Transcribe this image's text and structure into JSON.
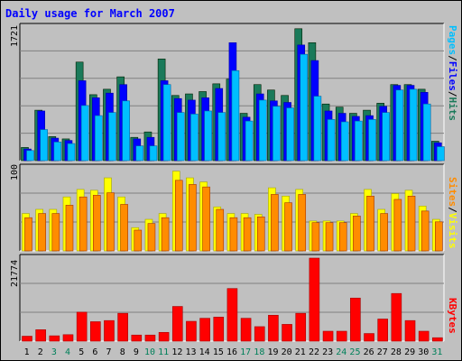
{
  "chart_data": [
    {
      "type": "bar",
      "panel": "top",
      "title": "Daily usage for March 2007",
      "scale_label": "1721",
      "categories": [
        "1",
        "2",
        "3",
        "4",
        "5",
        "6",
        "7",
        "8",
        "9",
        "10",
        "11",
        "12",
        "13",
        "14",
        "15",
        "16",
        "17",
        "18",
        "19",
        "20",
        "21",
        "22",
        "23",
        "24",
        "25",
        "26",
        "27",
        "28",
        "29",
        "30",
        "31"
      ],
      "weekend_days": [
        "3",
        "4",
        "10",
        "11",
        "17",
        "18",
        "24",
        "25",
        "31"
      ],
      "ylim": [
        0,
        1721
      ],
      "legend": [
        "Pages",
        "Files",
        "Hits"
      ],
      "series": [
        {
          "name": "Hits",
          "color": "#1a7a5a",
          "values": [
            170,
            650,
            310,
            280,
            1270,
            850,
            920,
            1080,
            300,
            370,
            1310,
            840,
            860,
            890,
            990,
            1050,
            610,
            980,
            910,
            840,
            1700,
            1520,
            730,
            690,
            610,
            650,
            740,
            980,
            980,
            920,
            250
          ]
        },
        {
          "name": "Files",
          "color": "#0000ff",
          "values": [
            150,
            640,
            290,
            260,
            1030,
            810,
            870,
            980,
            280,
            300,
            1030,
            800,
            780,
            810,
            930,
            1520,
            560,
            860,
            770,
            750,
            1490,
            1290,
            640,
            610,
            570,
            580,
            700,
            970,
            970,
            880,
            230
          ]
        },
        {
          "name": "Pages",
          "color": "#00bfff",
          "values": [
            130,
            400,
            240,
            220,
            710,
            580,
            620,
            770,
            190,
            190,
            980,
            620,
            600,
            640,
            620,
            1160,
            510,
            780,
            700,
            680,
            1370,
            830,
            530,
            500,
            510,
            530,
            620,
            910,
            920,
            730,
            180
          ]
        }
      ]
    },
    {
      "type": "bar",
      "panel": "middle",
      "scale_label": "100",
      "categories": [
        "1",
        "2",
        "3",
        "4",
        "5",
        "6",
        "7",
        "8",
        "9",
        "10",
        "11",
        "12",
        "13",
        "14",
        "15",
        "16",
        "17",
        "18",
        "19",
        "20",
        "21",
        "22",
        "23",
        "24",
        "25",
        "26",
        "27",
        "28",
        "29",
        "30",
        "31"
      ],
      "ylim": [
        0,
        100
      ],
      "legend": [
        "Sites",
        "Visits"
      ],
      "series": [
        {
          "name": "Visits",
          "color": "#ffff00",
          "values": [
            45,
            50,
            50,
            65,
            74,
            73,
            88,
            65,
            28,
            38,
            45,
            96,
            88,
            83,
            53,
            45,
            45,
            44,
            76,
            66,
            74,
            36,
            36,
            36,
            45,
            74,
            50,
            69,
            73,
            54,
            38
          ]
        },
        {
          "name": "Sites",
          "color": "#ff8c00",
          "values": [
            40,
            45,
            45,
            55,
            65,
            67,
            70,
            56,
            25,
            33,
            40,
            85,
            80,
            77,
            50,
            40,
            40,
            41,
            68,
            58,
            68,
            34,
            34,
            34,
            42,
            66,
            45,
            62,
            66,
            48,
            35
          ]
        }
      ]
    },
    {
      "type": "bar",
      "panel": "bottom",
      "scale_label": "21774",
      "categories": [
        "1",
        "2",
        "3",
        "4",
        "5",
        "6",
        "7",
        "8",
        "9",
        "10",
        "11",
        "12",
        "13",
        "14",
        "15",
        "16",
        "17",
        "18",
        "19",
        "20",
        "21",
        "22",
        "23",
        "24",
        "25",
        "26",
        "27",
        "28",
        "29",
        "30",
        "31"
      ],
      "ylim": [
        0,
        21774
      ],
      "legend": [
        "KBytes"
      ],
      "series": [
        {
          "name": "KBytes",
          "color": "#ff0000",
          "values": [
            1300,
            3000,
            1400,
            1700,
            7600,
            5100,
            5400,
            7300,
            1600,
            1600,
            2300,
            9100,
            5200,
            6000,
            6300,
            13800,
            6000,
            3800,
            6800,
            4400,
            7300,
            21774,
            2600,
            2600,
            11300,
            2000,
            5800,
            12500,
            5400,
            2600,
            900
          ]
        }
      ]
    }
  ]
}
